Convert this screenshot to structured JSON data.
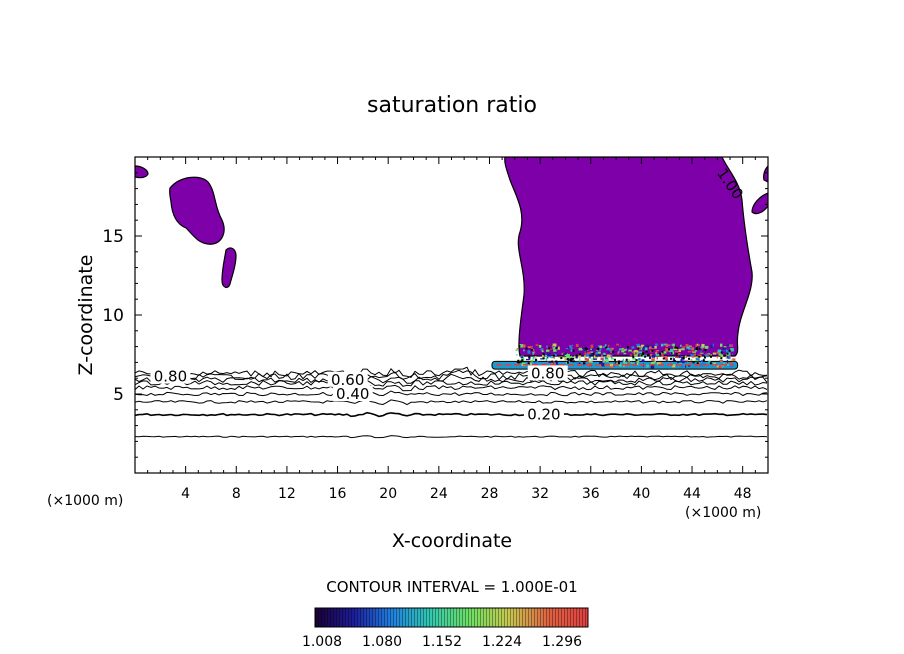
{
  "chart_data": {
    "type": "contour",
    "title": "saturation ratio",
    "xlabel": "X-coordinate",
    "ylabel": "Z-coordinate",
    "x_unit_label": "(×1000 m)",
    "y_unit_label": "(×1000 m)",
    "xlim": [
      0,
      50
    ],
    "ylim": [
      0,
      20
    ],
    "x_ticks": [
      4,
      8,
      12,
      16,
      20,
      24,
      28,
      32,
      36,
      40,
      44,
      48
    ],
    "y_ticks": [
      5,
      10,
      15
    ],
    "contour_labels": [
      {
        "text": "0.80",
        "x": 2.8,
        "y": 6.1
      },
      {
        "text": "0.60",
        "x": 16.8,
        "y": 5.9
      },
      {
        "text": "0.40",
        "x": 17.2,
        "y": 5.0
      },
      {
        "text": "0.20",
        "x": 32.3,
        "y": 3.7
      },
      {
        "text": "0.80",
        "x": 32.6,
        "y": 6.3
      },
      {
        "text": "1.00",
        "x": 47.0,
        "y": 18.3
      }
    ],
    "background_contour_heights": [
      2.3,
      3.7,
      4.5,
      5.0,
      5.4,
      5.7,
      5.9,
      6.1,
      6.3
    ],
    "contour_interval_text": "CONTOUR INTERVAL = 1.000E-01",
    "colorbar": {
      "ticks": [
        "1.008",
        "1.080",
        "1.152",
        "1.224",
        "1.296"
      ],
      "colors": [
        "#1a0033",
        "#1c1c9a",
        "#1f7fe0",
        "#30c8b0",
        "#6ee060",
        "#c8c850",
        "#e06040",
        "#e04040"
      ]
    },
    "fill_color": "#7d00a8"
  }
}
